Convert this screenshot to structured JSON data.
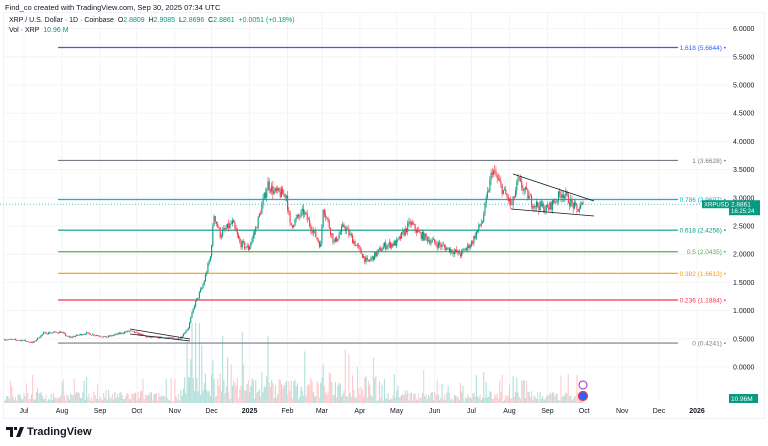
{
  "credit": "Find_co created with TradingView.com, Sep 30, 2025 07:34 UTC",
  "legend": {
    "symbol": "XRP / U.S. Dollar · 1D · Coinbase",
    "o_label": "O",
    "o": "2.8809",
    "h_label": "H",
    "h": "2.9085",
    "l_label": "L",
    "l": "2.8696",
    "c_label": "C",
    "c": "2.8861",
    "change": "+0.0051 (+0.18%)",
    "vol_label": "Vol · XRP",
    "vol": "10.96 M"
  },
  "brand": "TradingView",
  "colors": {
    "up": "#089981",
    "down": "#f23645",
    "up_vol": "#b2dfdb",
    "down_vol": "#fccbcd"
  },
  "chart_data": {
    "type": "candlestick",
    "symbol": "XRPUSD",
    "interval": "1D",
    "ylim": [
      0,
      6.2
    ],
    "y_ticks": [
      "6.0000",
      "5.5000",
      "5.0000",
      "4.5000",
      "4.0000",
      "3.5000",
      "3.0000",
      "2.5000",
      "2.0000",
      "1.5000",
      "1.0000",
      "0.5000",
      "0.0000"
    ],
    "x_ticks": [
      "Jul",
      "Aug",
      "Sep",
      "Oct",
      "Nov",
      "Dec",
      "2025",
      "Feb",
      "Mar",
      "Apr",
      "May",
      "Jun",
      "Jul",
      "Aug",
      "Sep",
      "Oct",
      "Nov",
      "Dec",
      "2026"
    ],
    "price_path": [
      [
        "2024-06-15",
        0.49
      ],
      [
        "2024-07-01",
        0.47
      ],
      [
        "2024-07-08",
        0.43
      ],
      [
        "2024-07-17",
        0.6
      ],
      [
        "2024-07-31",
        0.62
      ],
      [
        "2024-08-07",
        0.52
      ],
      [
        "2024-08-20",
        0.6
      ],
      [
        "2024-09-06",
        0.53
      ],
      [
        "2024-09-25",
        0.64
      ],
      [
        "2024-10-10",
        0.53
      ],
      [
        "2024-10-25",
        0.52
      ],
      [
        "2024-11-05",
        0.5
      ],
      [
        "2024-11-12",
        0.7
      ],
      [
        "2024-11-17",
        1.1
      ],
      [
        "2024-11-24",
        1.45
      ],
      [
        "2024-11-30",
        1.95
      ],
      [
        "2024-12-03",
        2.7
      ],
      [
        "2024-12-08",
        2.35
      ],
      [
        "2024-12-18",
        2.55
      ],
      [
        "2024-12-24",
        2.2
      ],
      [
        "2024-12-31",
        2.1
      ],
      [
        "2025-01-06",
        2.45
      ],
      [
        "2025-01-16",
        3.25
      ],
      [
        "2025-01-21",
        3.1
      ],
      [
        "2025-01-31",
        3.05
      ],
      [
        "2025-02-03",
        2.5
      ],
      [
        "2025-02-14",
        2.75
      ],
      [
        "2025-02-28",
        2.15
      ],
      [
        "2025-03-02",
        2.85
      ],
      [
        "2025-03-11",
        2.2
      ],
      [
        "2025-03-19",
        2.5
      ],
      [
        "2025-04-07",
        1.85
      ],
      [
        "2025-04-21",
        2.15
      ],
      [
        "2025-05-01",
        2.2
      ],
      [
        "2025-05-12",
        2.55
      ],
      [
        "2025-05-20",
        2.35
      ],
      [
        "2025-06-01",
        2.2
      ],
      [
        "2025-06-22",
        2.0
      ],
      [
        "2025-07-01",
        2.2
      ],
      [
        "2025-07-10",
        2.6
      ],
      [
        "2025-07-18",
        3.5
      ],
      [
        "2025-07-25",
        3.2
      ],
      [
        "2025-08-03",
        2.85
      ],
      [
        "2025-08-08",
        3.3
      ],
      [
        "2025-08-20",
        2.9
      ],
      [
        "2025-09-01",
        2.8
      ],
      [
        "2025-09-13",
        3.1
      ],
      [
        "2025-09-25",
        2.78
      ],
      [
        "2025-09-30",
        2.8861
      ]
    ],
    "fibonacci": [
      {
        "label": "1.618 (5.6644)",
        "value": 5.6644,
        "color": "#2962ff"
      },
      {
        "label": "1 (3.6628)",
        "value": 3.6628,
        "color": "#787b86"
      },
      {
        "label": "0.786 (2.9697)",
        "value": 2.9697,
        "color": "#00bcd4"
      },
      {
        "label": "0.618 (2.4256)",
        "value": 2.4256,
        "color": "#089981"
      },
      {
        "label": "0.5 (2.0435)",
        "value": 2.0435,
        "color": "#4caf50"
      },
      {
        "label": "0.382 (1.6613)",
        "value": 1.6613,
        "color": "#ff9800"
      },
      {
        "label": "0.236 (1.1884)",
        "value": 1.1884,
        "color": "#f23645"
      },
      {
        "label": "0 (0.4241)",
        "value": 0.4241,
        "color": "#787b86"
      }
    ],
    "last_price": {
      "symbol": "XRPUSD",
      "price": "2.8861",
      "countdown": "16:25:24"
    },
    "last_volume": "10.96M"
  }
}
